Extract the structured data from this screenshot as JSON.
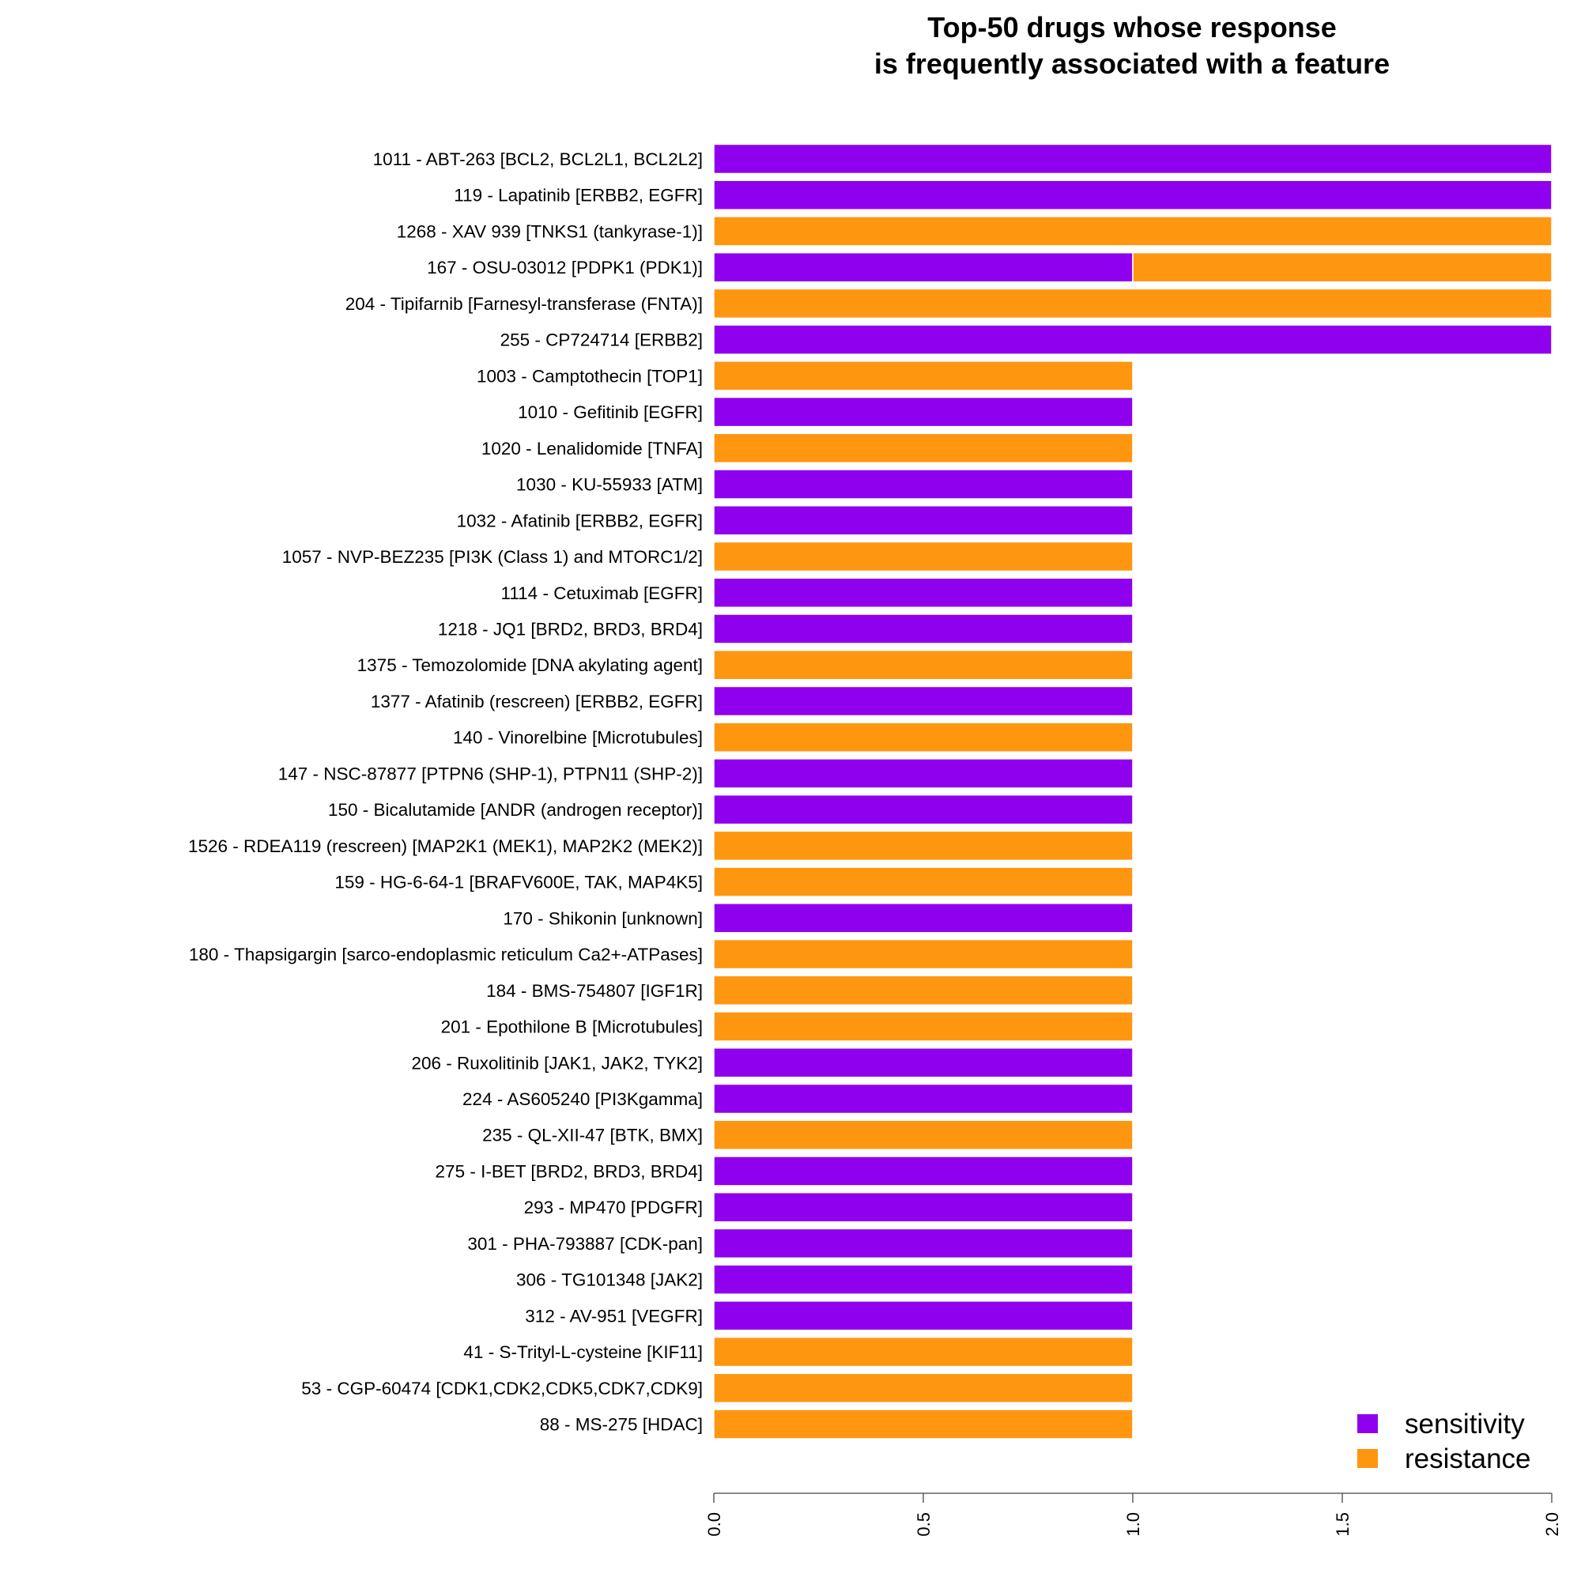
{
  "chart_data": {
    "type": "bar",
    "orientation": "horizontal",
    "stacked": true,
    "title_lines": [
      "Top-50 drugs whose response",
      "is frequently associated with a feature"
    ],
    "xlabel": "",
    "ylabel": "",
    "xlim": [
      0,
      2
    ],
    "x_ticks": [
      "0.0",
      "0.5",
      "1.0",
      "1.5",
      "2.0"
    ],
    "grid": false,
    "legend_position": "bottom-right",
    "categories": [
      "1011 - ABT-263 [BCL2, BCL2L1, BCL2L2]",
      "119 - Lapatinib [ERBB2, EGFR]",
      "1268 - XAV 939 [TNKS1 (tankyrase-1)]",
      "167 - OSU-03012 [PDPK1 (PDK1)]",
      "204 - Tipifarnib [Farnesyl-transferase (FNTA)]",
      "255 - CP724714 [ERBB2]",
      "1003 - Camptothecin [TOP1]",
      "1010 - Gefitinib [EGFR]",
      "1020 - Lenalidomide [TNFA]",
      "1030 - KU-55933 [ATM]",
      "1032 - Afatinib [ERBB2, EGFR]",
      "1057 - NVP-BEZ235 [PI3K (Class 1) and MTORC1/2]",
      "1114 - Cetuximab [EGFR]",
      "1218 - JQ1 [BRD2, BRD3, BRD4]",
      "1375 - Temozolomide [DNA akylating agent]",
      "1377 - Afatinib (rescreen) [ERBB2, EGFR]",
      "140 - Vinorelbine [Microtubules]",
      "147 - NSC-87877 [PTPN6 (SHP-1), PTPN11 (SHP-2)]",
      "150 - Bicalutamide [ANDR (androgen receptor)]",
      "1526 - RDEA119 (rescreen) [MAP2K1 (MEK1), MAP2K2 (MEK2)]",
      "159 - HG-6-64-1 [BRAFV600E, TAK, MAP4K5]",
      "170 - Shikonin [unknown]",
      "180 - Thapsigargin [sarco-endoplasmic reticulum Ca2+-ATPases]",
      "184 - BMS-754807 [IGF1R]",
      "201 - Epothilone B [Microtubules]",
      "206 - Ruxolitinib [JAK1, JAK2, TYK2]",
      "224 - AS605240 [PI3Kgamma]",
      "235 - QL-XII-47 [BTK, BMX]",
      "275 - I-BET [BRD2, BRD3, BRD4]",
      "293 - MP470 [PDGFR]",
      "301 - PHA-793887 [CDK-pan]",
      "306 - TG101348 [JAK2]",
      "312 - AV-951 [VEGFR]",
      "41 - S-Trityl-L-cysteine [KIF11]",
      "53 - CGP-60474 [CDK1,CDK2,CDK5,CDK7,CDK9]",
      "88 - MS-275 [HDAC]"
    ],
    "series": [
      {
        "name": "sensitivity",
        "color": "#8F00EE",
        "values": [
          2,
          2,
          0,
          1,
          0,
          2,
          0,
          1,
          0,
          1,
          1,
          0,
          1,
          1,
          0,
          1,
          0,
          1,
          1,
          0,
          0,
          1,
          0,
          0,
          0,
          1,
          1,
          0,
          1,
          1,
          1,
          1,
          1,
          0,
          0,
          0
        ]
      },
      {
        "name": "resistance",
        "color": "#FF960F",
        "values": [
          0,
          0,
          2,
          1,
          2,
          0,
          1,
          0,
          1,
          0,
          0,
          1,
          0,
          0,
          1,
          0,
          1,
          0,
          0,
          1,
          1,
          0,
          1,
          1,
          1,
          0,
          0,
          1,
          0,
          0,
          0,
          0,
          0,
          1,
          1,
          1
        ]
      }
    ]
  }
}
